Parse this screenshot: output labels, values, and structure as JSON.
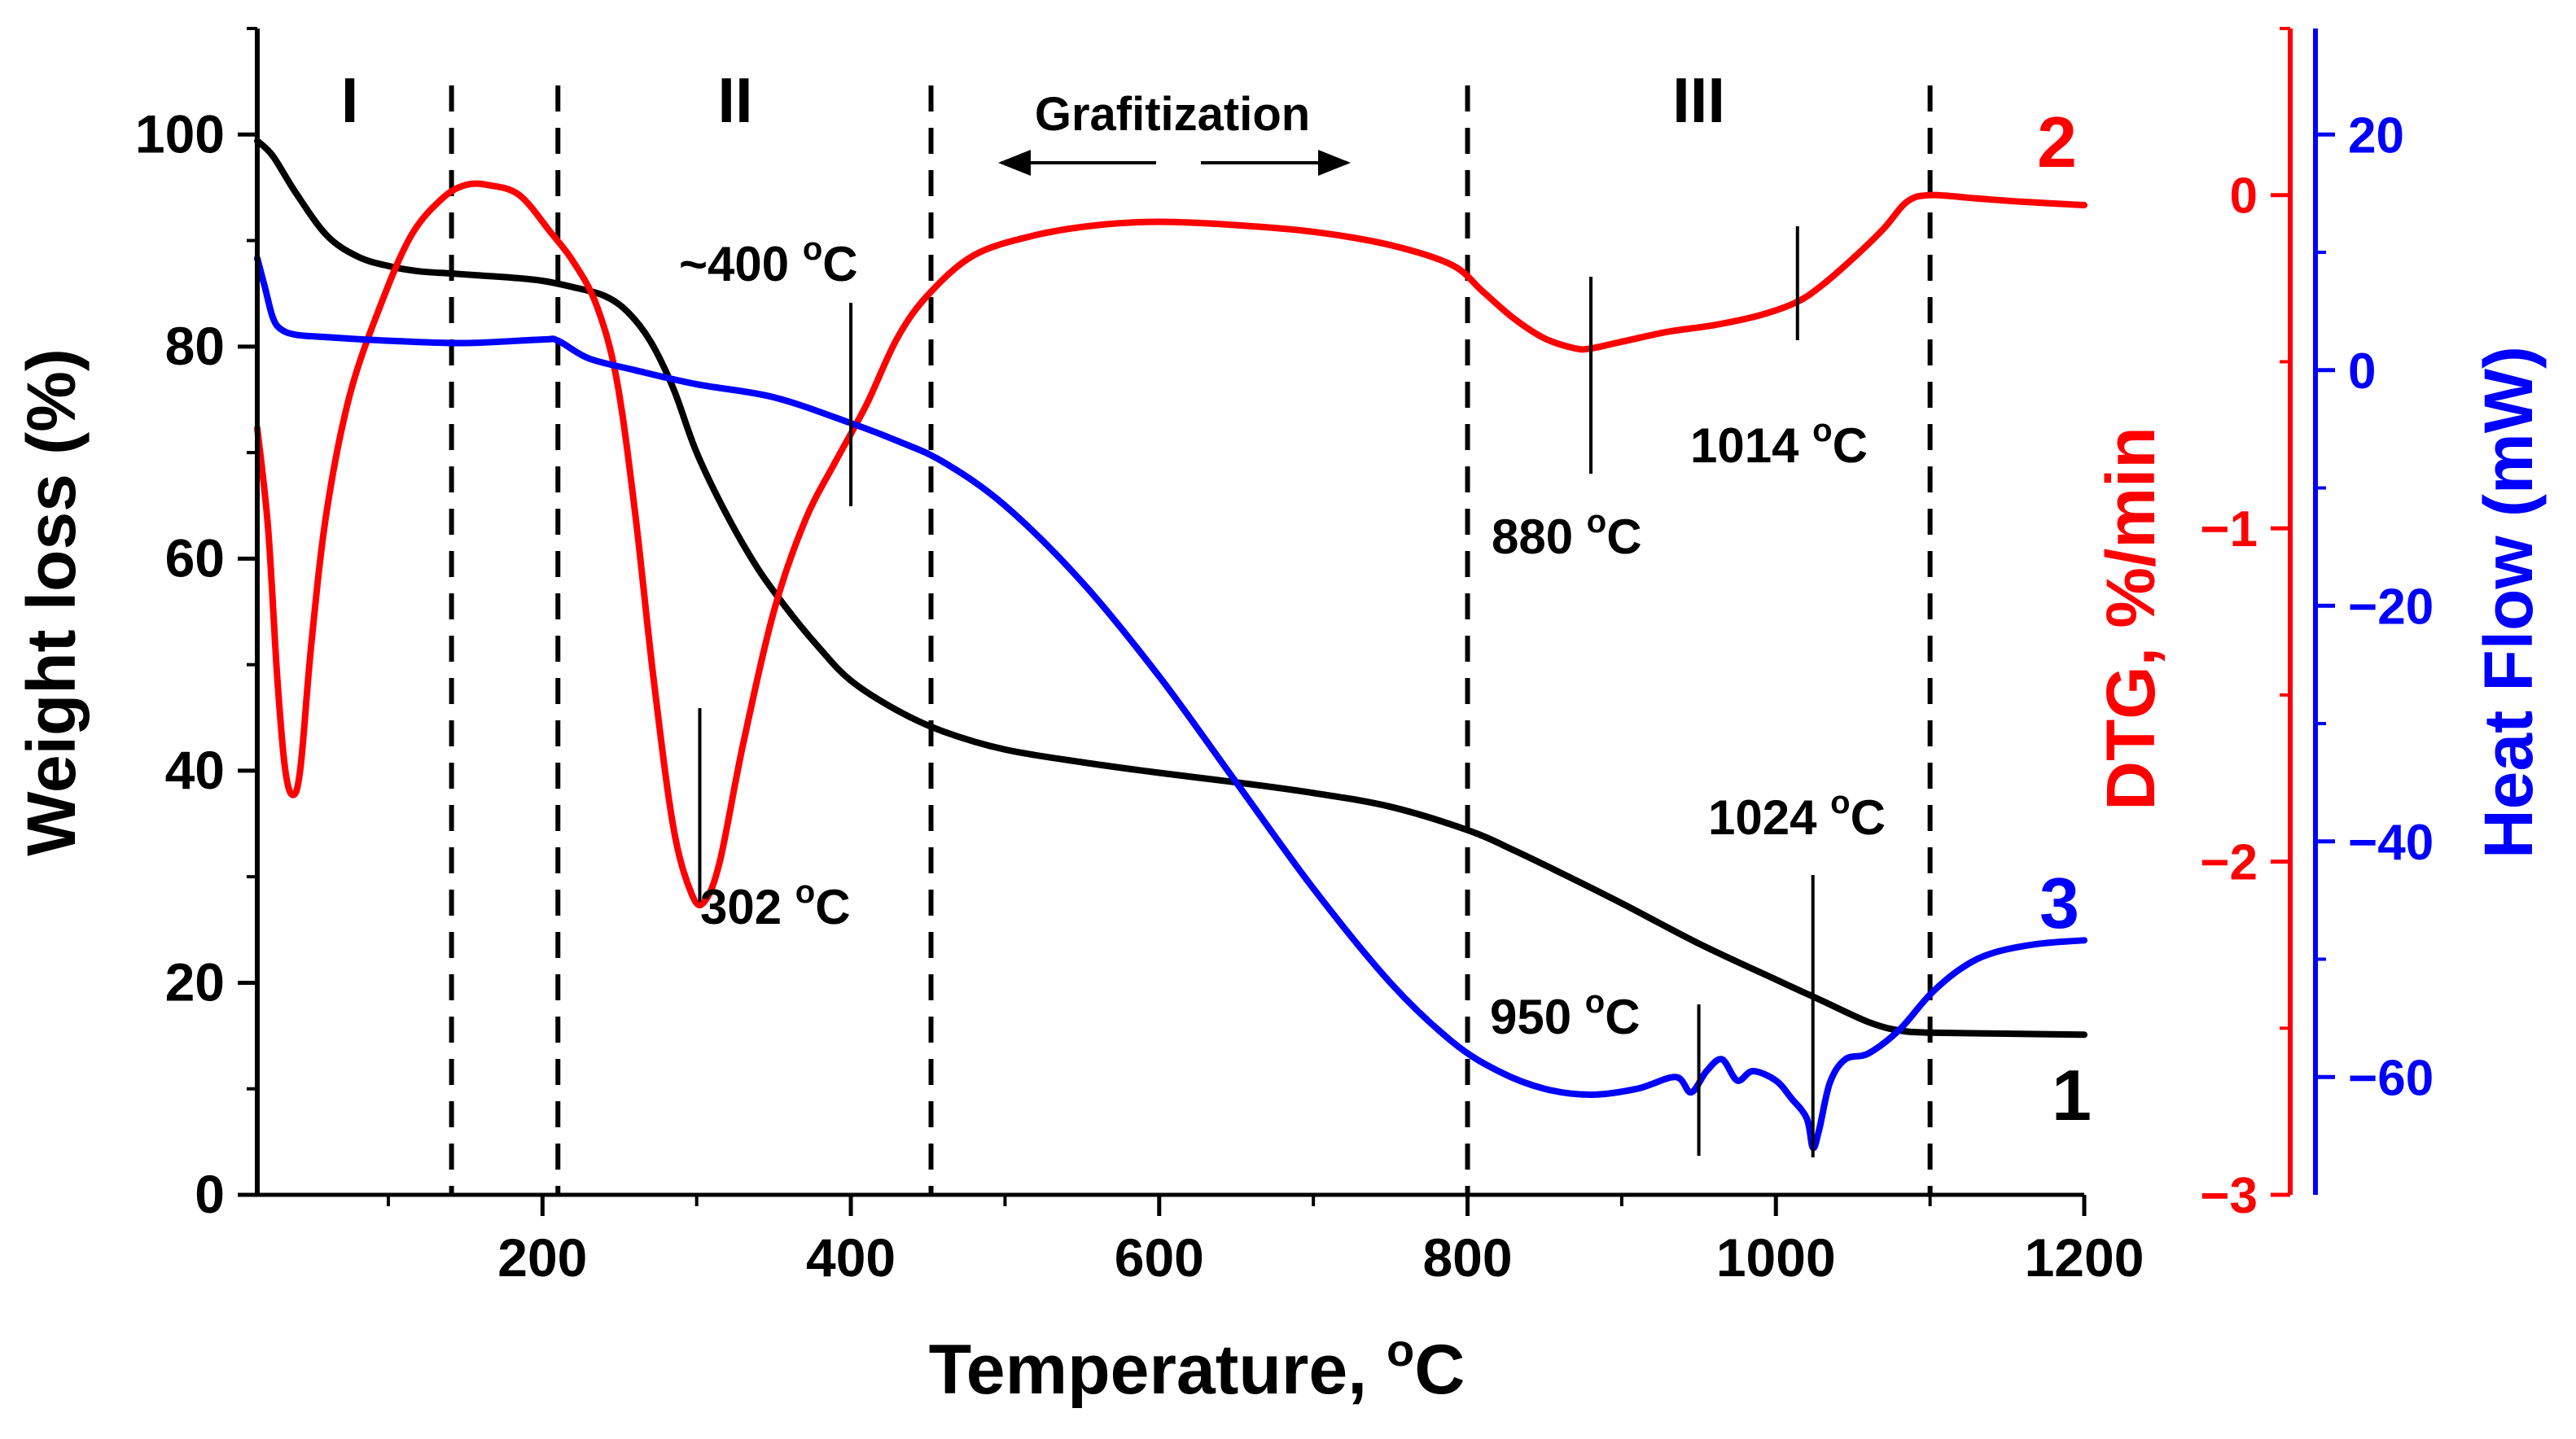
{
  "chart_data": {
    "type": "line",
    "xlabel": "Temperature, ",
    "xlabel_sup": "o",
    "xlabel_tail": "C",
    "xlim": [
      15,
      1200
    ],
    "x_ticks": [
      200,
      400,
      600,
      800,
      1000,
      1200
    ],
    "x_tick_labels": [
      "200",
      "400",
      "600",
      "800",
      "1000",
      "1200"
    ],
    "axes": {
      "left": {
        "label": "Weight loss (%)",
        "color": "#000000",
        "ylim": [
          0,
          110
        ],
        "ticks": [
          0,
          20,
          40,
          60,
          80,
          100
        ],
        "tick_labels": [
          "0",
          "20",
          "40",
          "60",
          "80",
          "100"
        ]
      },
      "right1": {
        "label_a": "DTG, ",
        "label_b": "%/min",
        "color": "#ff0000",
        "ylim": [
          -3,
          0.5
        ],
        "ticks": [
          0,
          -1,
          -2,
          -3
        ],
        "tick_labels": [
          "0",
          "−1",
          "−2",
          "−3"
        ]
      },
      "right2": {
        "label": "Heat Flow (mW)",
        "color": "#0000ff",
        "ylim": [
          -70,
          29
        ],
        "ticks": [
          20,
          0,
          -20,
          -40,
          -60
        ],
        "tick_labels": [
          "20",
          "0",
          "−20",
          "−40",
          "−60"
        ]
      }
    },
    "series": [
      {
        "name": "1",
        "label": "1",
        "axis": "left",
        "color": "#000000",
        "points": [
          [
            15,
            99.4
          ],
          [
            25,
            98
          ],
          [
            40,
            94.5
          ],
          [
            60,
            90.5
          ],
          [
            80,
            88.5
          ],
          [
            100,
            87.6
          ],
          [
            120,
            87.1
          ],
          [
            140,
            86.9
          ],
          [
            160,
            86.7
          ],
          [
            180,
            86.5
          ],
          [
            200,
            86.2
          ],
          [
            220,
            85.6
          ],
          [
            240,
            84.8
          ],
          [
            255,
            83.3
          ],
          [
            270,
            80.5
          ],
          [
            285,
            76
          ],
          [
            300,
            70
          ],
          [
            320,
            64
          ],
          [
            340,
            59
          ],
          [
            360,
            55
          ],
          [
            380,
            51.5
          ],
          [
            400,
            48.5
          ],
          [
            430,
            45.7
          ],
          [
            460,
            43.7
          ],
          [
            500,
            42
          ],
          [
            550,
            40.8
          ],
          [
            600,
            39.8
          ],
          [
            650,
            38.9
          ],
          [
            700,
            37.9
          ],
          [
            750,
            36.6
          ],
          [
            800,
            34.4
          ],
          [
            830,
            32.5
          ],
          [
            860,
            30.4
          ],
          [
            900,
            27.5
          ],
          [
            950,
            23.7
          ],
          [
            1000,
            20.3
          ],
          [
            1030,
            18.3
          ],
          [
            1060,
            16.3
          ],
          [
            1080,
            15.5
          ],
          [
            1100,
            15.3
          ],
          [
            1150,
            15.2
          ],
          [
            1200,
            15.1
          ]
        ]
      },
      {
        "name": "2",
        "label": "2",
        "axis": "right1",
        "color": "#ff0000",
        "points": [
          [
            15,
            -0.7
          ],
          [
            22,
            -1.0
          ],
          [
            28,
            -1.45
          ],
          [
            33,
            -1.72
          ],
          [
            38,
            -1.8
          ],
          [
            43,
            -1.72
          ],
          [
            50,
            -1.35
          ],
          [
            60,
            -0.95
          ],
          [
            75,
            -0.6
          ],
          [
            95,
            -0.33
          ],
          [
            115,
            -0.12
          ],
          [
            135,
            -0.01
          ],
          [
            150,
            0.03
          ],
          [
            165,
            0.03
          ],
          [
            185,
            0.0
          ],
          [
            205,
            -0.11
          ],
          [
            220,
            -0.2
          ],
          [
            235,
            -0.33
          ],
          [
            248,
            -0.55
          ],
          [
            260,
            -0.95
          ],
          [
            272,
            -1.45
          ],
          [
            285,
            -1.9
          ],
          [
            297,
            -2.1
          ],
          [
            305,
            -2.12
          ],
          [
            315,
            -2.0
          ],
          [
            330,
            -1.65
          ],
          [
            350,
            -1.25
          ],
          [
            370,
            -0.98
          ],
          [
            390,
            -0.8
          ],
          [
            410,
            -0.63
          ],
          [
            430,
            -0.43
          ],
          [
            450,
            -0.3
          ],
          [
            480,
            -0.18
          ],
          [
            520,
            -0.12
          ],
          [
            560,
            -0.09
          ],
          [
            600,
            -0.08
          ],
          [
            650,
            -0.09
          ],
          [
            700,
            -0.11
          ],
          [
            750,
            -0.15
          ],
          [
            790,
            -0.21
          ],
          [
            810,
            -0.29
          ],
          [
            830,
            -0.37
          ],
          [
            850,
            -0.43
          ],
          [
            870,
            -0.46
          ],
          [
            880,
            -0.46
          ],
          [
            900,
            -0.44
          ],
          [
            930,
            -0.41
          ],
          [
            960,
            -0.39
          ],
          [
            990,
            -0.36
          ],
          [
            1014,
            -0.32
          ],
          [
            1030,
            -0.27
          ],
          [
            1050,
            -0.19
          ],
          [
            1070,
            -0.1
          ],
          [
            1085,
            -0.02
          ],
          [
            1100,
            0.0
          ],
          [
            1130,
            -0.01
          ],
          [
            1160,
            -0.02
          ],
          [
            1200,
            -0.03
          ]
        ]
      },
      {
        "name": "3",
        "label": "3",
        "axis": "right2",
        "color": "#0000ff",
        "points": [
          [
            15,
            9.5
          ],
          [
            20,
            7
          ],
          [
            25,
            4.5
          ],
          [
            30,
            3.5
          ],
          [
            40,
            3
          ],
          [
            60,
            2.8
          ],
          [
            100,
            2.5
          ],
          [
            150,
            2.3
          ],
          [
            200,
            2.6
          ],
          [
            210,
            2.5
          ],
          [
            230,
            1
          ],
          [
            260,
            0
          ],
          [
            300,
            -1.2
          ],
          [
            350,
            -2.3
          ],
          [
            400,
            -4.5
          ],
          [
            430,
            -6
          ],
          [
            460,
            -7.8
          ],
          [
            500,
            -11.5
          ],
          [
            550,
            -18
          ],
          [
            600,
            -26
          ],
          [
            650,
            -35
          ],
          [
            700,
            -44
          ],
          [
            750,
            -52
          ],
          [
            790,
            -57
          ],
          [
            820,
            -59.5
          ],
          [
            850,
            -61
          ],
          [
            880,
            -61.5
          ],
          [
            910,
            -61
          ],
          [
            935,
            -60
          ],
          [
            945,
            -61.3
          ],
          [
            955,
            -59.5
          ],
          [
            965,
            -58.5
          ],
          [
            975,
            -60.3
          ],
          [
            985,
            -59.5
          ],
          [
            1000,
            -60.3
          ],
          [
            1010,
            -61.8
          ],
          [
            1020,
            -63.5
          ],
          [
            1024,
            -66
          ],
          [
            1028,
            -64.5
          ],
          [
            1035,
            -60.5
          ],
          [
            1045,
            -58.5
          ],
          [
            1060,
            -58
          ],
          [
            1080,
            -56
          ],
          [
            1100,
            -53
          ],
          [
            1120,
            -50.8
          ],
          [
            1140,
            -49.5
          ],
          [
            1170,
            -48.7
          ],
          [
            1200,
            -48.4
          ]
        ]
      }
    ],
    "regions": [
      {
        "label": "I",
        "x": 75
      },
      {
        "label": "II",
        "x": 325
      },
      {
        "label": "III",
        "x": 950
      }
    ],
    "region_boundaries": [
      141,
      210,
      452,
      800,
      1100
    ],
    "grafitization": {
      "text": "Grafitization",
      "x_from": 490,
      "x_to": 740
    },
    "peak_annotations": [
      {
        "text": "302 ",
        "sup": "o",
        "tail": "C",
        "x": 302
      },
      {
        "text": "~400 ",
        "sup": "o",
        "tail": "C",
        "x": 400
      },
      {
        "text": "880 ",
        "sup": "o",
        "tail": "C",
        "x": 880
      },
      {
        "text": "1014 ",
        "sup": "o",
        "tail": "C",
        "x": 1014
      },
      {
        "text": "950 ",
        "sup": "o",
        "tail": "C",
        "x": 950
      },
      {
        "text": "1024 ",
        "sup": "o",
        "tail": "C",
        "x": 1024
      }
    ]
  }
}
